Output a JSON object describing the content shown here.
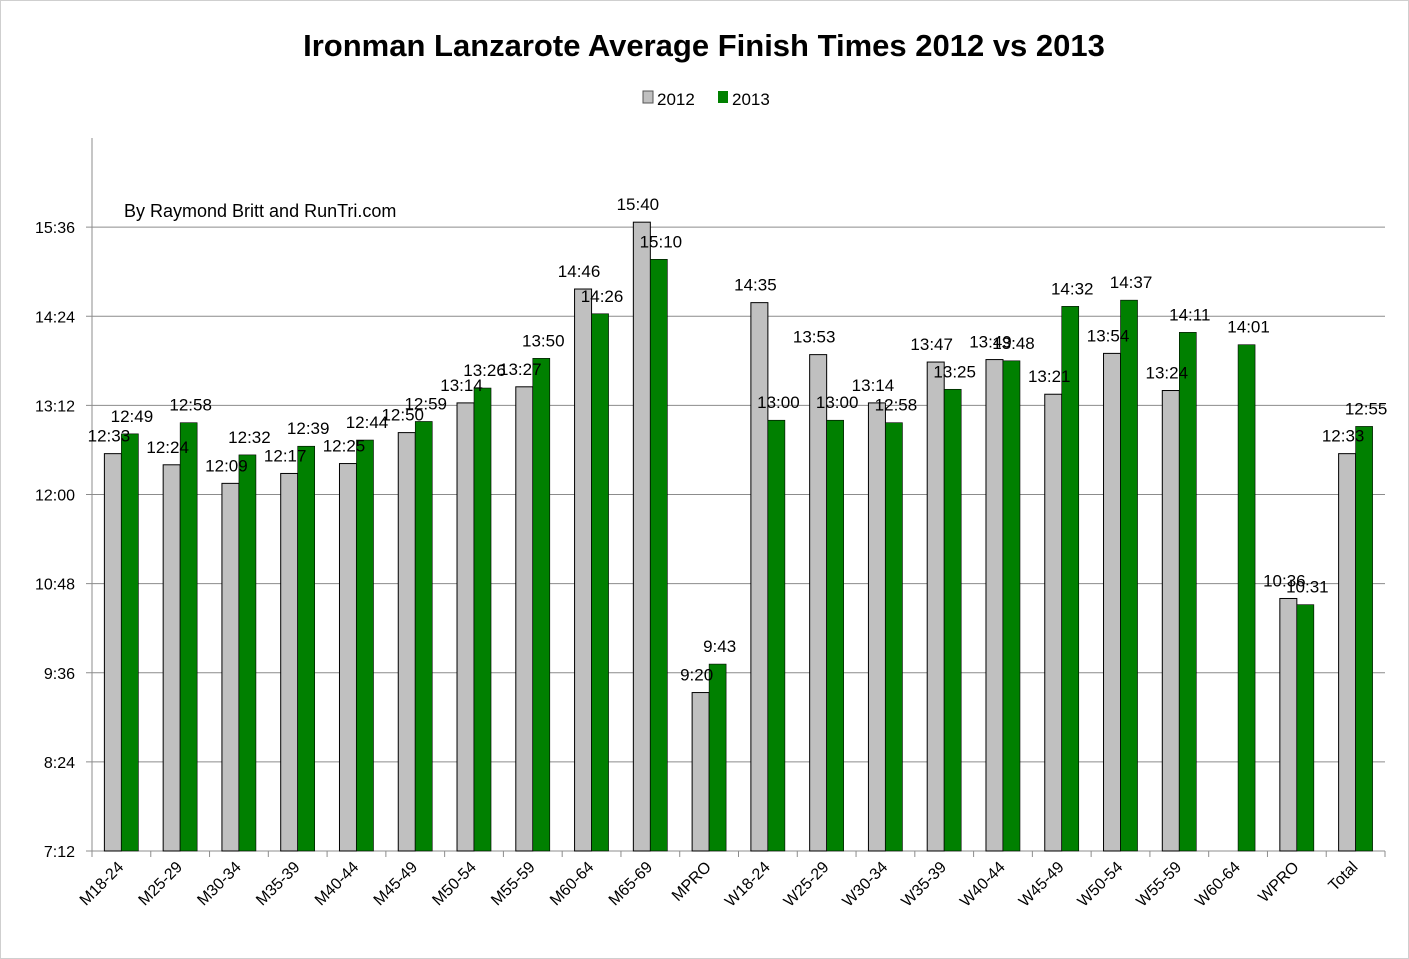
{
  "chart_data": {
    "type": "bar",
    "title": "Ironman Lanzarote Average Finish Times 2012 vs 2013",
    "annotation": "By Raymond Britt and RunTri.com",
    "legend_position": "top-center",
    "grid": true,
    "y_axis": {
      "format": "h:mm",
      "min_minutes": 432,
      "max_minutes": 1008,
      "tick_minutes": [
        432,
        504,
        576,
        648,
        720,
        792,
        864,
        936
      ],
      "tick_labels": [
        "7:12",
        "8:24",
        "9:36",
        "10:48",
        "12:00",
        "13:12",
        "14:24",
        "15:36"
      ]
    },
    "categories": [
      "M18-24",
      "M25-29",
      "M30-34",
      "M35-39",
      "M40-44",
      "M45-49",
      "M50-54",
      "M55-59",
      "M60-64",
      "M65-69",
      "MPRO",
      "W18-24",
      "W25-29",
      "W30-34",
      "W35-39",
      "W40-44",
      "W45-49",
      "W50-54",
      "W55-59",
      "W60-64",
      "WPRO",
      "Total"
    ],
    "series": [
      {
        "name": "2012",
        "color": "#c0c0c0",
        "values_minutes": [
          753,
          744,
          729,
          737,
          745,
          770,
          794,
          807,
          886,
          940,
          560,
          875,
          833,
          794,
          827,
          829,
          801,
          834,
          804,
          null,
          636,
          753
        ],
        "labels": [
          "12:33",
          "12:24",
          "12:09",
          "12:17",
          "12:25",
          "12:50",
          "13:14",
          "13:27",
          "14:46",
          "15:40",
          "9:20",
          "14:35",
          "13:53",
          "13:14",
          "13:47",
          "13:49",
          "13:21",
          "13:54",
          "13:24",
          "",
          "10:36",
          "12:33"
        ]
      },
      {
        "name": "2013",
        "color": "#008000",
        "values_minutes": [
          769,
          778,
          752,
          759,
          764,
          779,
          806,
          830,
          866,
          910,
          583,
          780,
          780,
          778,
          805,
          828,
          872,
          877,
          851,
          841,
          631,
          775
        ],
        "labels": [
          "12:49",
          "12:58",
          "12:32",
          "12:39",
          "12:44",
          "12:59",
          "13:26",
          "13:50",
          "14:26",
          "15:10",
          "9:43",
          "13:00",
          "13:00",
          "12:58",
          "13:25",
          "13:48",
          "14:32",
          "14:37",
          "14:11",
          "14:01",
          "10:31",
          "12:55"
        ]
      }
    ]
  }
}
